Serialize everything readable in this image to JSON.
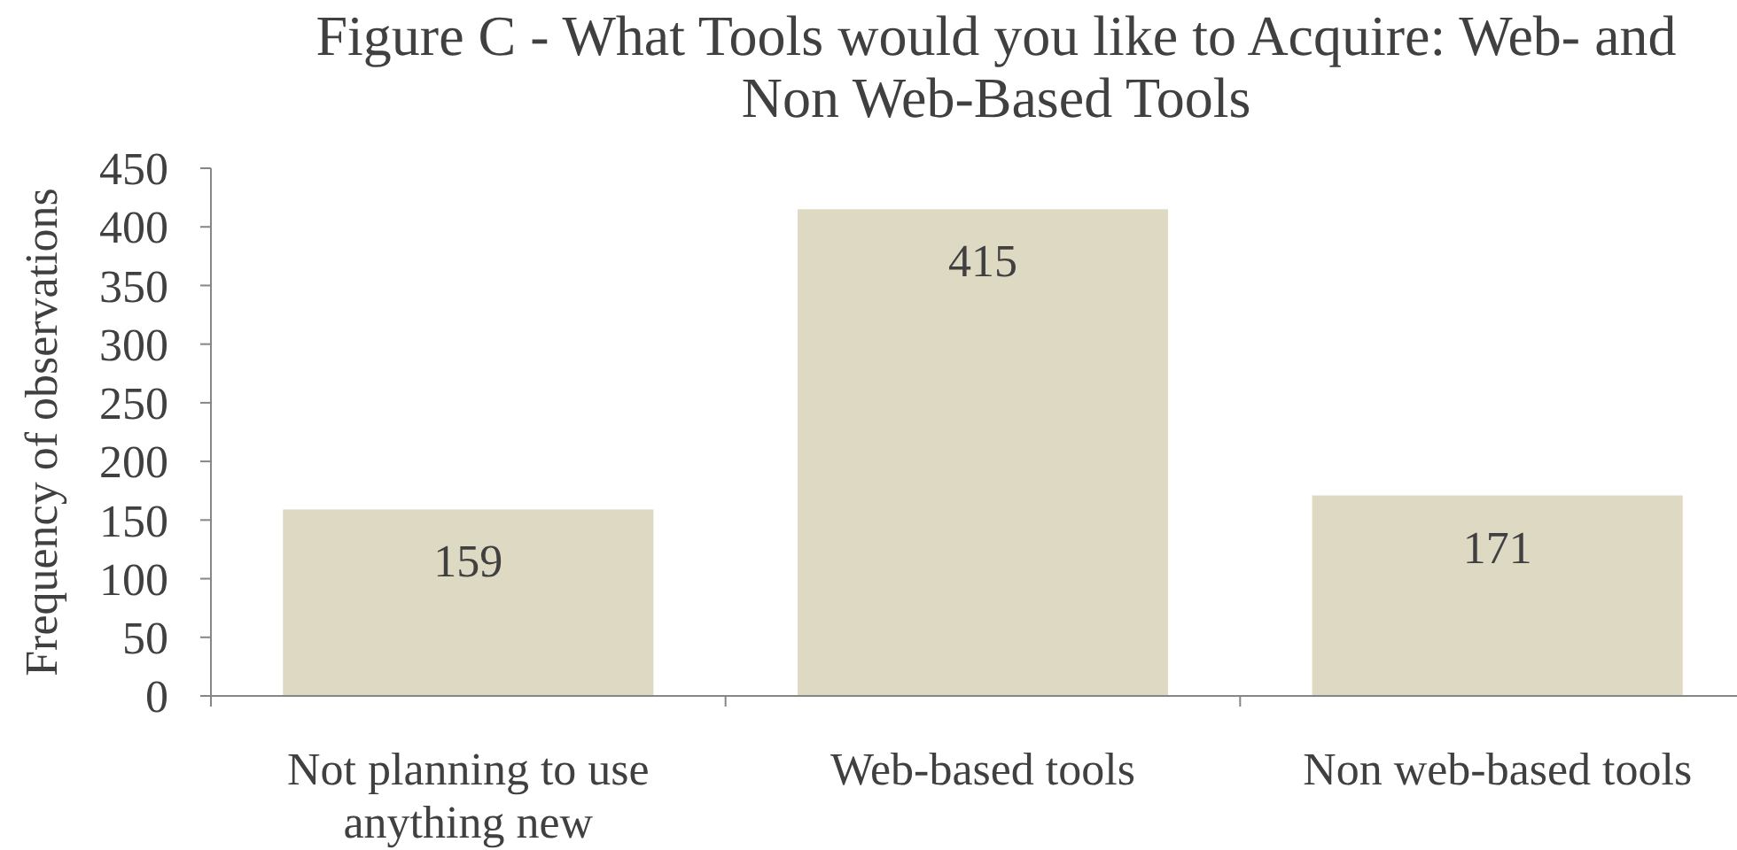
{
  "chart_data": {
    "type": "bar",
    "title": "Figure C - What Tools would you like to Acquire: Web- and Non Web-Based Tools",
    "ylabel": "Frequency of observations",
    "categories": [
      "Not planning to use anything new",
      "Web-based tools",
      "Non web-based tools"
    ],
    "values": [
      159,
      415,
      171
    ],
    "color": "#ddd9c3",
    "ylim": [
      0,
      450
    ],
    "yticks": [
      0,
      50,
      100,
      150,
      200,
      250,
      300,
      350,
      400,
      450
    ],
    "data_labels": true
  }
}
